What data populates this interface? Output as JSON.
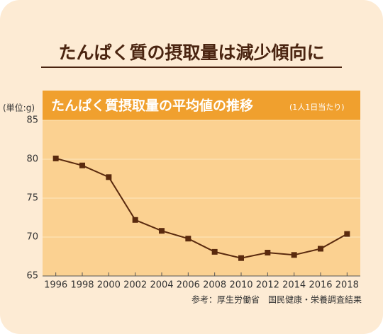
{
  "chart_data": {
    "type": "line",
    "headline": "たんぱく質の摂取量は減少傾向に",
    "title": "たんぱく質摂取量の平均値の推移",
    "subtitle": "(1人1日当たり)",
    "y_unit_label": "(単位:g)",
    "source": "参考：厚生労働省　国民健康・栄養調査結果",
    "x": [
      1996,
      1998,
      2000,
      2002,
      2004,
      2006,
      2008,
      2010,
      2012,
      2014,
      2016,
      2018
    ],
    "series": [
      {
        "name": "たんぱく質摂取量",
        "color": "#5a2a0e",
        "values": [
          80.1,
          79.2,
          77.7,
          72.2,
          70.8,
          69.8,
          68.1,
          67.3,
          68.0,
          67.7,
          68.5,
          70.4
        ]
      }
    ],
    "xlim": [
      1995,
      2019
    ],
    "xticks": [
      1996,
      1998,
      2000,
      2002,
      2004,
      2006,
      2008,
      2010,
      2012,
      2014,
      2016,
      2018
    ],
    "ylim": [
      65,
      85
    ],
    "yticks": [
      65,
      70,
      75,
      80,
      85
    ],
    "grid": true,
    "legend": false
  }
}
